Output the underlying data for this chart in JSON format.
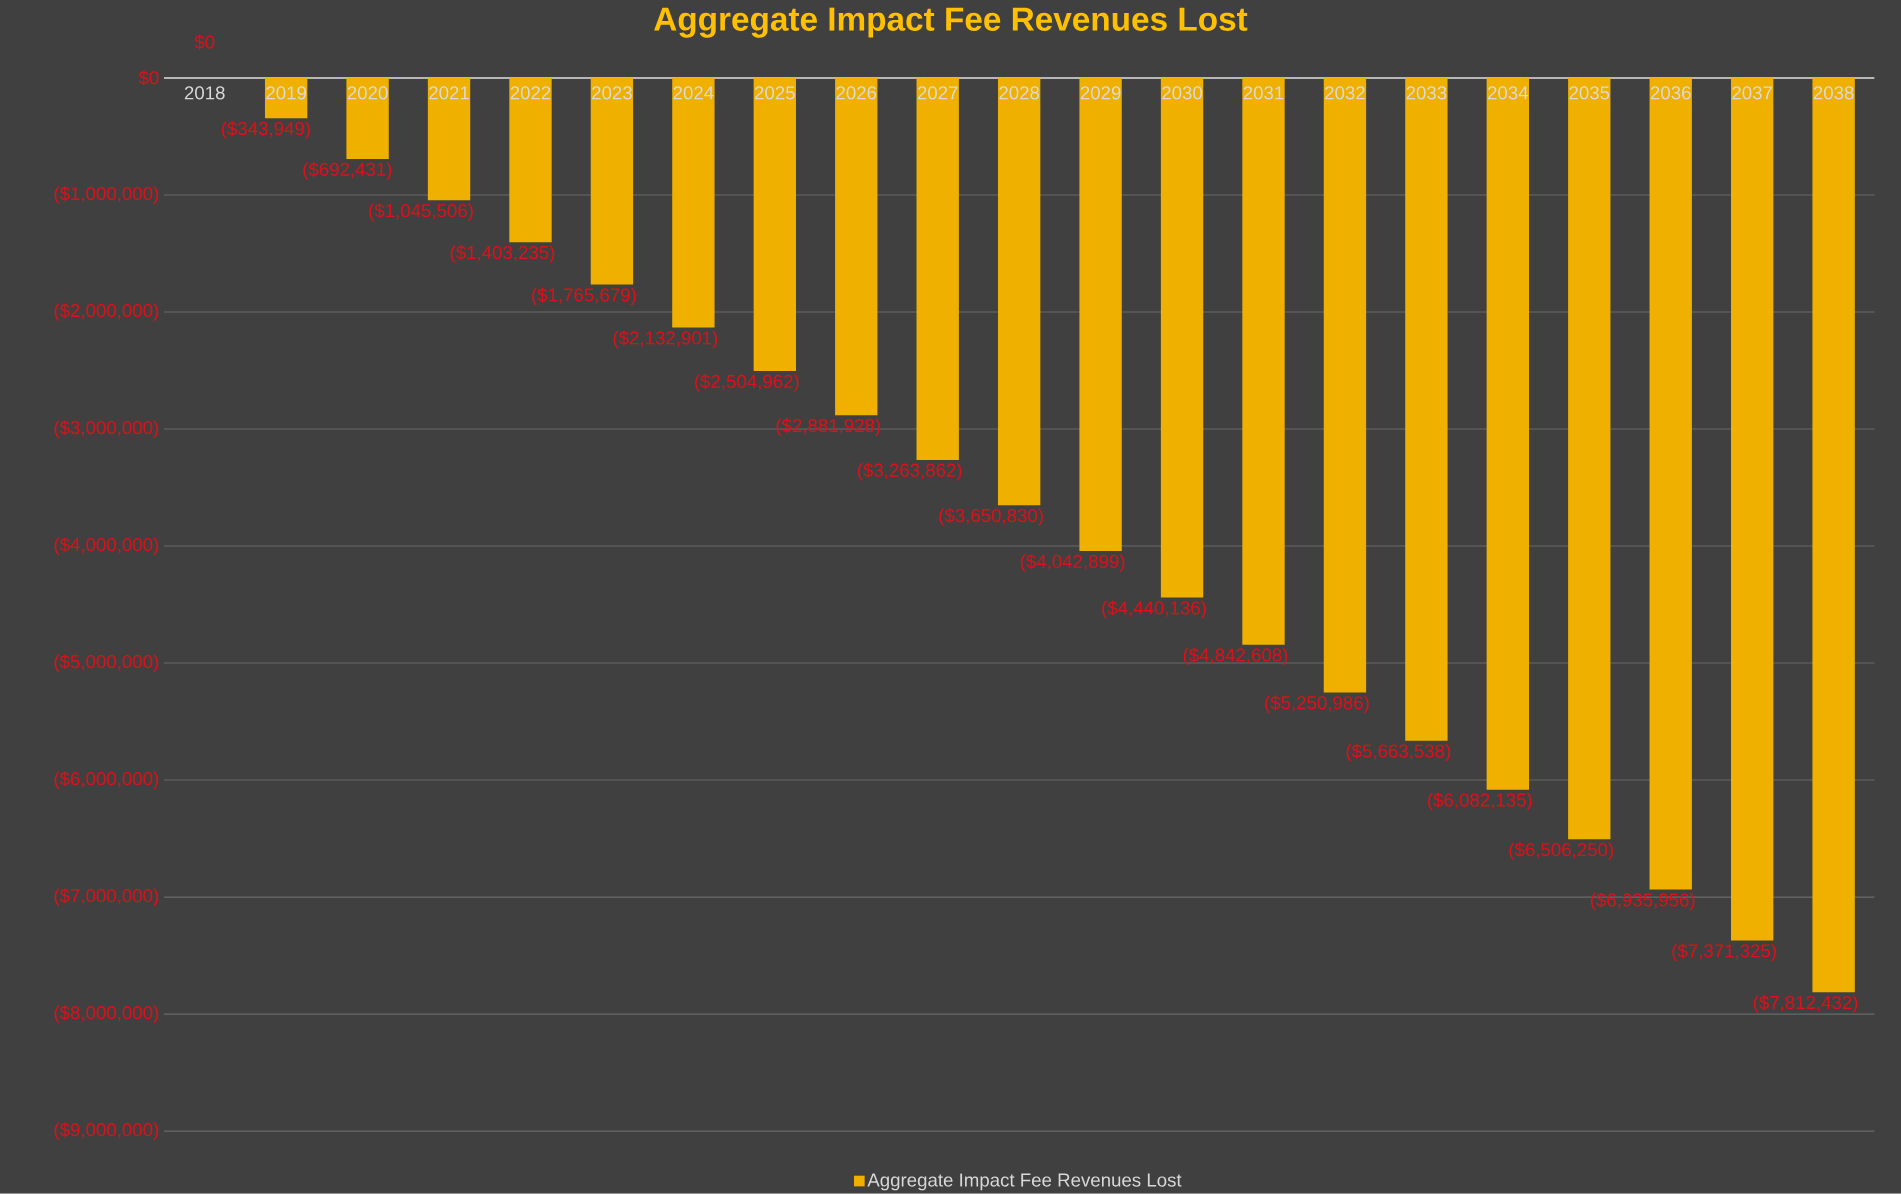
{
  "chart_data": {
    "type": "bar",
    "title": "Aggregate Impact Fee Revenues Lost",
    "categories": [
      "2018",
      "2019",
      "2020",
      "2021",
      "2022",
      "2023",
      "2024",
      "2025",
      "2026",
      "2027",
      "2028",
      "2029",
      "2030",
      "2031",
      "2032",
      "2033",
      "2034",
      "2035",
      "2036",
      "2037",
      "2038"
    ],
    "series": [
      {
        "name": "Aggregate Impact Fee Revenues Lost",
        "color": "#f0b000",
        "values": [
          0,
          -343949,
          -692431,
          -1045506,
          -1403235,
          -1765679,
          -2132901,
          -2504962,
          -2881928,
          -3263862,
          -3650830,
          -4042899,
          -4440136,
          -4842608,
          -5250986,
          -5663538,
          -6082135,
          -6506250,
          -6935956,
          -7371325,
          -7812432
        ],
        "value_labels": [
          "$0",
          "($343,949)",
          "($692,431)",
          "($1,045,506)",
          "($1,403,235)",
          "($1,765,679)",
          "($2,132,901)",
          "($2,504,962)",
          "($2,881,928)",
          "($3,263,862)",
          "($3,650,830)",
          "($4,042,899)",
          "($4,440,136)",
          "($4,842,608)",
          "($5,250,986)",
          "($5,663,538)",
          "($6,082,135)",
          "($6,506,250)",
          "($6,935,956)",
          "($7,371,325)",
          "($7,812,432)"
        ]
      }
    ],
    "ylim": [
      -9000000,
      0
    ],
    "yticks": [
      {
        "value": 0,
        "label": "$0"
      },
      {
        "value": -1000000,
        "label": "($1,000,000)"
      },
      {
        "value": -2000000,
        "label": "($2,000,000)"
      },
      {
        "value": -3000000,
        "label": "($3,000,000)"
      },
      {
        "value": -4000000,
        "label": "($4,000,000)"
      },
      {
        "value": -5000000,
        "label": "($5,000,000)"
      },
      {
        "value": -6000000,
        "label": "($6,000,000)"
      },
      {
        "value": -7000000,
        "label": "($7,000,000)"
      },
      {
        "value": -8000000,
        "label": "($8,000,000)"
      },
      {
        "value": -9000000,
        "label": "($9,000,000)"
      }
    ],
    "grid": "y",
    "legend": "bottom"
  }
}
